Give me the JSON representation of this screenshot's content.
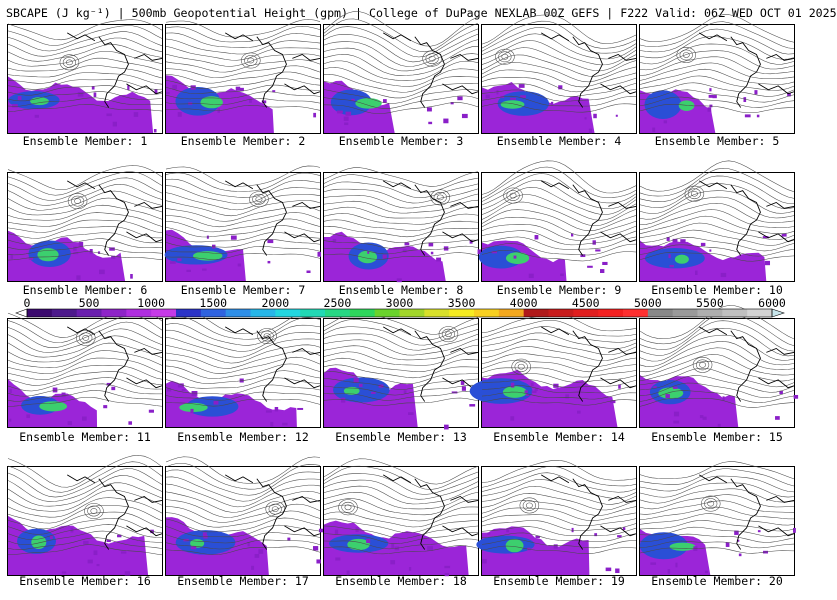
{
  "title": "SBCAPE (J kg⁻¹) | 500mb Geopotential Height (gpm) | College of DuPage NEXLAB 00Z GEFS | F222 Valid: 06Z WED OCT 01 2025",
  "panels": [
    {
      "caption": "Ensemble Member: 1"
    },
    {
      "caption": "Ensemble Member: 2"
    },
    {
      "caption": "Ensemble Member: 3"
    },
    {
      "caption": "Ensemble Member: 4"
    },
    {
      "caption": "Ensemble Member: 5"
    },
    {
      "caption": "Ensemble Member: 6"
    },
    {
      "caption": "Ensemble Member: 7"
    },
    {
      "caption": "Ensemble Member: 8"
    },
    {
      "caption": "Ensemble Member: 9"
    },
    {
      "caption": "Ensemble Member: 10"
    },
    {
      "caption": "Ensemble Member: 11"
    },
    {
      "caption": "Ensemble Member: 12"
    },
    {
      "caption": "Ensemble Member: 13"
    },
    {
      "caption": "Ensemble Member: 14"
    },
    {
      "caption": "Ensemble Member: 15"
    },
    {
      "caption": "Ensemble Member: 16"
    },
    {
      "caption": "Ensemble Member: 17"
    },
    {
      "caption": "Ensemble Member: 18"
    },
    {
      "caption": "Ensemble Member: 19"
    },
    {
      "caption": "Ensemble Member: 20"
    }
  ],
  "colorbar": {
    "labels": [
      "0",
      "500",
      "1000",
      "1500",
      "2000",
      "2500",
      "3000",
      "3500",
      "4000",
      "4500",
      "5000",
      "5500",
      "6000"
    ],
    "colors": [
      "#3b0a6e",
      "#4d1a8c",
      "#6a1fae",
      "#8e24c8",
      "#b02ee0",
      "#c63ae8",
      "#2c34c8",
      "#2f63e0",
      "#2f8fe8",
      "#27b6e8",
      "#22d6e0",
      "#22d8b4",
      "#27d884",
      "#2ed65c",
      "#6ad32c",
      "#a2d62a",
      "#d8e02a",
      "#f6ec22",
      "#f8d020",
      "#f4a81e",
      "#b01a1a",
      "#c81c1c",
      "#e01e1e",
      "#f42020",
      "#ff3030",
      "#888888",
      "#9a9a9a",
      "#aeaeae",
      "#c0c0c0",
      "#d4d4d4"
    ]
  }
}
